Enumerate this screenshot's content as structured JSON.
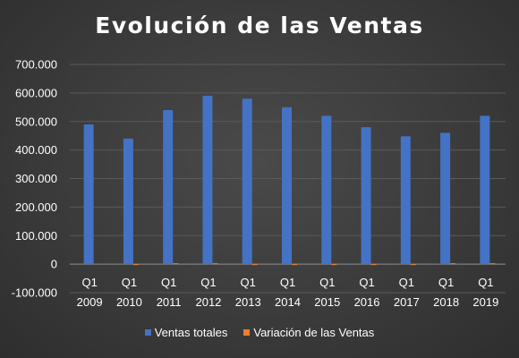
{
  "chart_data": {
    "type": "bar",
    "title": "Evolución de las Ventas",
    "categories": [
      [
        "Q1",
        "2009"
      ],
      [
        "Q1",
        "2010"
      ],
      [
        "Q1",
        "2011"
      ],
      [
        "Q1",
        "2012"
      ],
      [
        "Q1",
        "2013"
      ],
      [
        "Q1",
        "2014"
      ],
      [
        "Q1",
        "2015"
      ],
      [
        "Q1",
        "2016"
      ],
      [
        "Q1",
        "2017"
      ],
      [
        "Q1",
        "2018"
      ],
      [
        "Q1",
        "2019"
      ]
    ],
    "series": [
      {
        "name": "Ventas totales",
        "color": "#4472C4",
        "values": [
          490000,
          440000,
          540000,
          590000,
          580000,
          550000,
          520000,
          480000,
          448000,
          460000,
          520000
        ]
      },
      {
        "name": "Variación de las Ventas",
        "color": "#ED7D31",
        "values": [
          null,
          -0.1,
          0.23,
          0.09,
          -0.02,
          -0.05,
          -0.05,
          -0.08,
          -0.07,
          0.03,
          0.13
        ]
      }
    ],
    "yticks": [
      "700.000",
      "600.000",
      "500.000",
      "400.000",
      "300.000",
      "200.000",
      "100.000",
      "0",
      "-100.000"
    ],
    "ylim": [
      -100000,
      700000
    ],
    "grid": true,
    "legend_position": "bottom"
  }
}
